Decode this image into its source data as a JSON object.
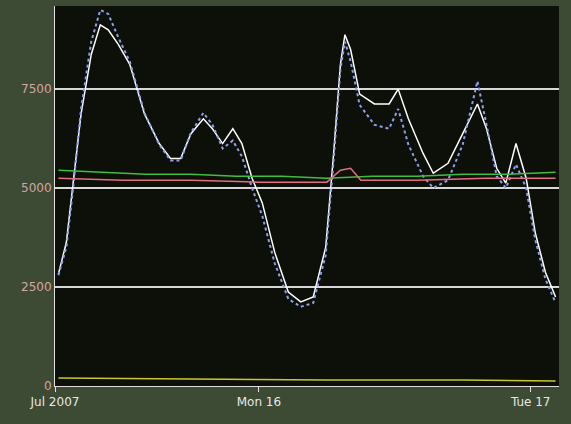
{
  "chart_data": {
    "type": "line",
    "xlim": [
      6,
      50.5
    ],
    "xticks": [
      {
        "value": 6,
        "label": "Jul 2007"
      },
      {
        "value": 24,
        "label": "Mon 16"
      },
      {
        "value": 48,
        "label": "Tue 17"
      }
    ],
    "ylim": [
      0,
      9600
    ],
    "yticks": [
      0,
      2500,
      5000,
      7500
    ],
    "grid": true,
    "series": [
      {
        "color": "#ffffff",
        "line_style": "solid",
        "x": [
          6.3,
          7.0,
          7.6,
          8.3,
          9.2,
          10.0,
          10.7,
          11.6,
          12.6,
          13.9,
          15.2,
          16.2,
          17.1,
          18.0,
          19.1,
          19.9,
          20.8,
          21.7,
          22.5,
          23.4,
          24.3,
          25.4,
          26.6,
          27.7,
          28.8,
          29.9,
          30.6,
          31.2,
          31.6,
          32.1,
          32.9,
          34.2,
          35.5,
          36.3,
          37.2,
          38.5,
          39.4,
          40.7,
          42.0,
          43.3,
          44.1,
          45.0,
          45.8,
          46.7,
          47.6,
          48.4,
          49.3,
          50.2
        ],
        "values": [
          2825,
          3625,
          5125,
          6875,
          8375,
          9125,
          9000,
          8625,
          8125,
          6875,
          6125,
          5750,
          5750,
          6375,
          6750,
          6500,
          6125,
          6500,
          6125,
          5250,
          4625,
          3375,
          2375,
          2125,
          2250,
          3500,
          5875,
          8125,
          8875,
          8500,
          7375,
          7125,
          7125,
          7500,
          6750,
          5875,
          5375,
          5625,
          6375,
          7125,
          6500,
          5500,
          5125,
          6125,
          5250,
          3875,
          2875,
          2250
        ]
      },
      {
        "color": "#8f9ff0",
        "line_style": "dotted",
        "x": [
          6.3,
          7.0,
          7.6,
          8.3,
          9.2,
          10.0,
          10.7,
          11.6,
          12.6,
          13.9,
          15.2,
          16.2,
          17.1,
          18.0,
          19.1,
          19.9,
          20.8,
          21.7,
          22.5,
          23.4,
          24.3,
          25.4,
          26.6,
          27.7,
          28.8,
          29.9,
          30.6,
          31.2,
          31.6,
          32.1,
          32.9,
          34.2,
          35.5,
          36.3,
          37.2,
          38.5,
          39.4,
          40.7,
          42.0,
          43.3,
          44.1,
          45.0,
          45.8,
          46.7,
          47.6,
          48.4,
          49.3,
          50.2
        ],
        "values": [
          2800,
          3500,
          5000,
          7000,
          8700,
          9500,
          9400,
          8800,
          8200,
          6900,
          6100,
          5700,
          5700,
          6400,
          6900,
          6600,
          6000,
          6200,
          5800,
          5000,
          4300,
          3100,
          2200,
          2000,
          2100,
          3300,
          5700,
          8000,
          8700,
          8200,
          7100,
          6600,
          6500,
          7000,
          6100,
          5300,
          5000,
          5200,
          6100,
          7700,
          6600,
          5300,
          5000,
          5600,
          5000,
          3700,
          2700,
          2100
        ]
      },
      {
        "color": "#3fbf3f",
        "line_style": "solid",
        "x": [
          6.3,
          10,
          14,
          18,
          22,
          26,
          30,
          34,
          38,
          42,
          46,
          50.2
        ],
        "values": [
          5450,
          5400,
          5350,
          5350,
          5300,
          5300,
          5250,
          5300,
          5300,
          5350,
          5350,
          5400
        ]
      },
      {
        "color": "#e07080",
        "line_style": "solid",
        "x": [
          6.3,
          12,
          18,
          24,
          30,
          31.2,
          32.1,
          33,
          38,
          44,
          50.2
        ],
        "values": [
          5250,
          5200,
          5200,
          5150,
          5150,
          5450,
          5500,
          5200,
          5200,
          5250,
          5250
        ]
      },
      {
        "color": "#c8c832",
        "line_style": "solid",
        "x": [
          6.3,
          18,
          30,
          42,
          50.2
        ],
        "values": [
          200,
          175,
          150,
          150,
          125
        ]
      }
    ]
  }
}
